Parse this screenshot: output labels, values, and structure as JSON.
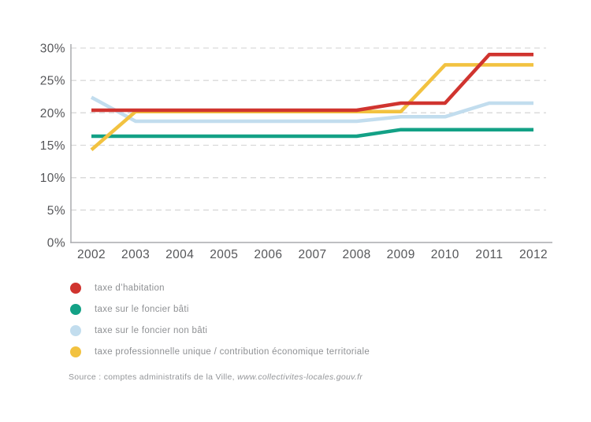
{
  "chart_data": {
    "type": "line",
    "title": "",
    "xlabel": "",
    "ylabel": "",
    "categories": [
      "2002",
      "2003",
      "2004",
      "2005",
      "2006",
      "2007",
      "2008",
      "2009",
      "2010",
      "2011",
      "2012"
    ],
    "y_ticks": [
      "0%",
      "5%",
      "10%",
      "15%",
      "20%",
      "25%",
      "30%"
    ],
    "ylim": [
      0,
      30
    ],
    "grid": "horizontal dashed",
    "legend_position": "below-chart-left",
    "series": [
      {
        "name": "taxe d’habitation",
        "color": "#d0342f",
        "values": [
          20.4,
          20.4,
          20.4,
          20.4,
          20.4,
          20.4,
          20.4,
          21.5,
          21.5,
          29.0,
          29.0
        ]
      },
      {
        "name": "taxe sur le foncier bâti",
        "color": "#13a186",
        "values": [
          16.4,
          16.4,
          16.4,
          16.4,
          16.4,
          16.4,
          16.4,
          17.4,
          17.4,
          17.4,
          17.4
        ]
      },
      {
        "name": "taxe sur le foncier non bâti",
        "color": "#c2ddee",
        "values": [
          22.4,
          18.7,
          18.7,
          18.7,
          18.7,
          18.7,
          18.7,
          19.4,
          19.4,
          21.5,
          21.5
        ]
      },
      {
        "name": "taxe professionnelle unique / contribution économique territoriale",
        "color": "#f2c240",
        "values": [
          14.3,
          20.2,
          20.2,
          20.2,
          20.2,
          20.2,
          20.2,
          20.2,
          27.4,
          27.4,
          27.4
        ]
      }
    ]
  },
  "colors": {
    "gridline": "#d9d9d9",
    "axis": "#a8aaad",
    "axis_text": "#555659",
    "legend_text": "#8f9194"
  },
  "source": {
    "prefix": "Source : comptes administratifs de la Ville, ",
    "link_text": "www.collectivites-locales.gouv.fr"
  }
}
